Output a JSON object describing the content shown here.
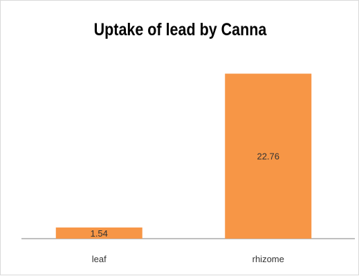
{
  "chart_data": {
    "type": "bar",
    "title": "Uptake of lead by Canna",
    "categories": [
      "leaf",
      "rhizome"
    ],
    "values": [
      1.54,
      22.76
    ],
    "data_labels": [
      "1.54",
      "22.76"
    ],
    "xlabel": "",
    "ylabel": "",
    "ylim": [
      0,
      25
    ],
    "grid": false,
    "legend": "none",
    "bar_color": "#F79646",
    "axis_color": "#7f7f7f"
  }
}
